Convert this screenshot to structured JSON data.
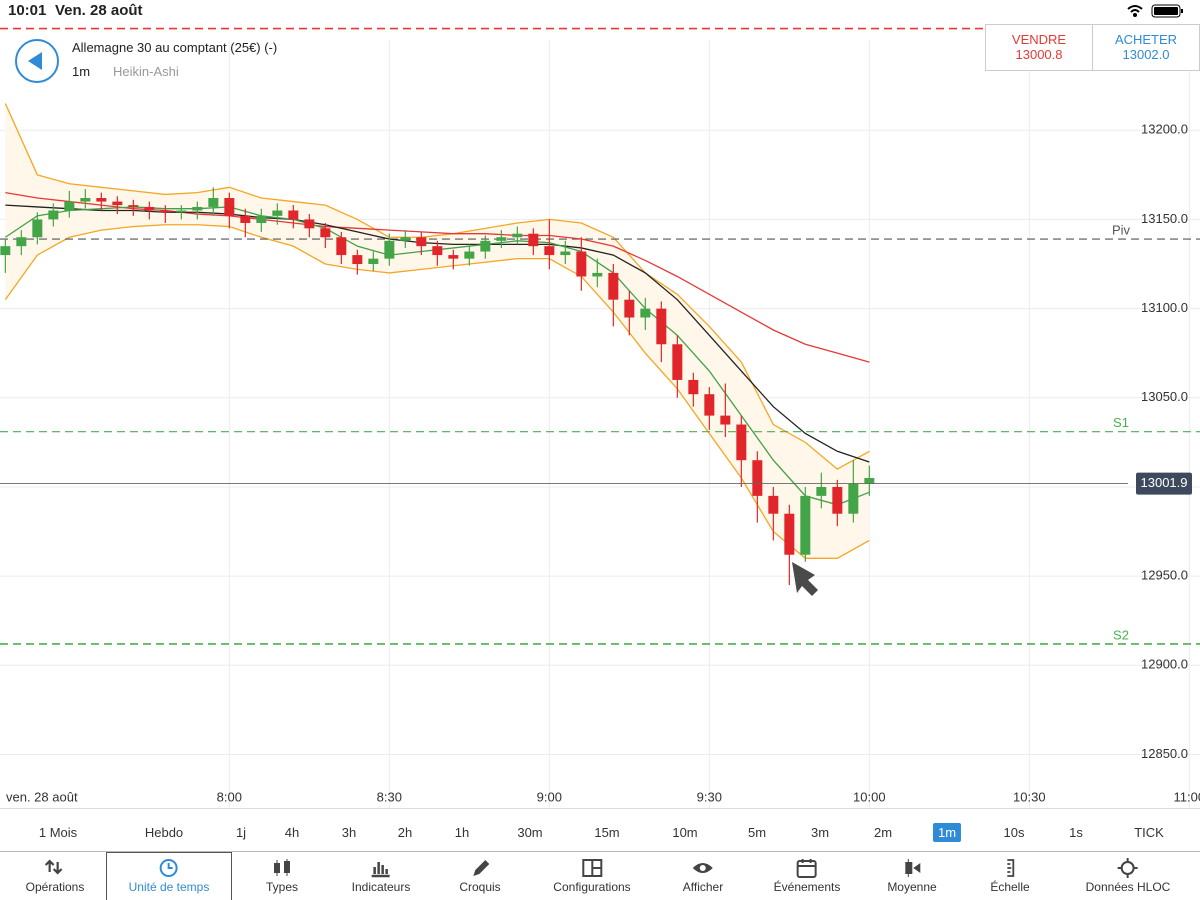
{
  "status_bar": {
    "time": "10:01",
    "date": "Ven. 28 août"
  },
  "header": {
    "instrument": "Allemagne 30 au comptant (25€) (-)",
    "interval": "1m",
    "chart_style": "Heikin-Ashi",
    "sell": {
      "label": "VENDRE",
      "price": "13000.8"
    },
    "buy": {
      "label": "ACHETER",
      "price": "13002.0"
    }
  },
  "chart_data": {
    "type": "candlestick",
    "date_label": "ven. 28 août",
    "xlim": [
      437,
      662
    ],
    "ylim": [
      12820,
      13259
    ],
    "xticks": [
      {
        "value": 480,
        "label": "8:00"
      },
      {
        "value": 510,
        "label": "8:30"
      },
      {
        "value": 540,
        "label": "9:00"
      },
      {
        "value": 570,
        "label": "9:30"
      },
      {
        "value": 600,
        "label": "10:00"
      },
      {
        "value": 630,
        "label": "10:30"
      },
      {
        "value": 660,
        "label": "11:00"
      }
    ],
    "yticks": [
      {
        "value": 12850,
        "label": "12850.0"
      },
      {
        "value": 12900,
        "label": "12900.0"
      },
      {
        "value": 12950,
        "label": "12950.0"
      },
      {
        "value": 13000,
        "label": "13000.0"
      },
      {
        "value": 13050,
        "label": "13050.0"
      },
      {
        "value": 13100,
        "label": "13100.0"
      },
      {
        "value": 13150,
        "label": "13150.0"
      },
      {
        "value": 13200,
        "label": "13200.0"
      }
    ],
    "grid": true,
    "up_color": "#43a547",
    "down_color": "#e0262b",
    "x": [
      438,
      441,
      444,
      447,
      450,
      453,
      456,
      459,
      462,
      465,
      468,
      471,
      474,
      477,
      480,
      483,
      486,
      489,
      492,
      495,
      498,
      501,
      504,
      507,
      510,
      513,
      516,
      519,
      522,
      525,
      528,
      531,
      534,
      537,
      540,
      543,
      546,
      549,
      552,
      555,
      558,
      561,
      564,
      567,
      570,
      573,
      576,
      579,
      582,
      585,
      588,
      591,
      594,
      597,
      600
    ],
    "open": [
      13130,
      13135,
      13140,
      13150,
      13155,
      13160,
      13162,
      13160,
      13158,
      13157,
      13155,
      13154,
      13155,
      13157,
      13162,
      13152,
      13148,
      13152,
      13155,
      13150,
      13145,
      13140,
      13130,
      13125,
      13128,
      13138,
      13140,
      13135,
      13130,
      13128,
      13132,
      13138,
      13140,
      13142,
      13135,
      13130,
      13132,
      13118,
      13120,
      13105,
      13095,
      13100,
      13080,
      13060,
      13052,
      13040,
      13035,
      13015,
      12995,
      12985,
      12962,
      12995,
      13000,
      12985,
      13002
    ],
    "high": [
      13139,
      13144,
      13154,
      13159,
      13166,
      13167,
      13165,
      13163,
      13161,
      13160,
      13158,
      13158,
      13160,
      13168,
      13165,
      13156,
      13156,
      13159,
      13158,
      13153,
      13148,
      13143,
      13133,
      13132,
      13142,
      13144,
      13143,
      13138,
      13133,
      13136,
      13141,
      13144,
      13146,
      13145,
      13150,
      13138,
      13140,
      13128,
      13125,
      13110,
      13106,
      13104,
      13085,
      13064,
      13056,
      13058,
      13040,
      13020,
      13000,
      12990,
      13000,
      13008,
      13004,
      13015,
      13012
    ],
    "low": [
      13120,
      13130,
      13136,
      13146,
      13151,
      13156,
      13155,
      13153,
      13152,
      13150,
      13148,
      13150,
      13150,
      13152,
      13145,
      13140,
      13143,
      13147,
      13145,
      13140,
      13134,
      13125,
      13119,
      13121,
      13124,
      13134,
      13130,
      13124,
      13122,
      13124,
      13128,
      13134,
      13136,
      13130,
      13122,
      13125,
      13110,
      13112,
      13090,
      13085,
      13088,
      13070,
      13050,
      13045,
      13032,
      13028,
      13000,
      12980,
      12970,
      12945,
      12958,
      12988,
      12978,
      12980,
      12995
    ],
    "close": [
      13135,
      13140,
      13150,
      13155,
      13160,
      13162,
      13160,
      13158,
      13157,
      13155,
      13154,
      13155,
      13157,
      13162,
      13152,
      13148,
      13152,
      13155,
      13150,
      13145,
      13140,
      13130,
      13125,
      13128,
      13138,
      13140,
      13135,
      13130,
      13128,
      13132,
      13138,
      13140,
      13142,
      13135,
      13130,
      13132,
      13118,
      13120,
      13105,
      13095,
      13100,
      13080,
      13060,
      13052,
      13040,
      13035,
      13015,
      12995,
      12985,
      12962,
      12995,
      13000,
      12985,
      13002,
      13005
    ],
    "line_x": [
      438,
      444,
      450,
      456,
      462,
      468,
      474,
      480,
      486,
      492,
      498,
      504,
      510,
      516,
      522,
      528,
      534,
      540,
      546,
      552,
      558,
      564,
      570,
      576,
      582,
      588,
      594,
      600
    ],
    "lines": [
      {
        "color": "#e53935",
        "values": [
          13165,
          13162,
          13160,
          13158,
          13156,
          13155,
          13153,
          13152,
          13150,
          13148,
          13146,
          13145,
          13144,
          13143,
          13142,
          13142,
          13141,
          13141,
          13139,
          13135,
          13127,
          13118,
          13108,
          13098,
          13088,
          13080,
          13075,
          13070
        ]
      },
      {
        "color": "#222222",
        "values": [
          13158,
          13157,
          13156,
          13155,
          13155,
          13154,
          13154,
          13153,
          13151,
          13150,
          13147,
          13143,
          13139,
          13137,
          13136,
          13136,
          13136,
          13136,
          13134,
          13130,
          13120,
          13105,
          13085,
          13065,
          13045,
          13030,
          13020,
          13014
        ]
      },
      {
        "color": "#43a047",
        "values": [
          13140,
          13152,
          13155,
          13156,
          13157,
          13156,
          13156,
          13157,
          13152,
          13150,
          13145,
          13135,
          13130,
          13132,
          13134,
          13136,
          13138,
          13137,
          13132,
          13120,
          13100,
          13085,
          13065,
          13040,
          13015,
          12995,
          12990,
          12997
        ]
      }
    ],
    "band": {
      "color": "#f5a623",
      "fill": "#fff7ea",
      "upper": [
        13215,
        13175,
        13170,
        13168,
        13166,
        13164,
        13165,
        13168,
        13162,
        13160,
        13158,
        13150,
        13140,
        13140,
        13142,
        13145,
        13148,
        13150,
        13148,
        13140,
        13120,
        13108,
        13090,
        13070,
        13035,
        13025,
        13010,
        13020
      ],
      "lower": [
        13105,
        13130,
        13140,
        13144,
        13146,
        13147,
        13147,
        13146,
        13140,
        13135,
        13125,
        13122,
        13120,
        13122,
        13124,
        13126,
        13128,
        13128,
        13118,
        13098,
        13075,
        13055,
        13030,
        13005,
        12975,
        12960,
        12960,
        12970
      ]
    },
    "levels": [
      {
        "value": 13257,
        "color": "#e53935"
      },
      {
        "value": 13139,
        "label": "Piv",
        "color": "#555555"
      },
      {
        "value": 13031,
        "label": "S1",
        "color": "#4caf50"
      },
      {
        "value": 12912,
        "label": "S2",
        "color": "#4caf50"
      }
    ],
    "last_price": 13001.9
  },
  "timeframes": [
    {
      "label": "1 Mois"
    },
    {
      "label": "Hebdo"
    },
    {
      "label": "1j"
    },
    {
      "label": "4h"
    },
    {
      "label": "3h"
    },
    {
      "label": "2h"
    },
    {
      "label": "1h"
    },
    {
      "label": "30m"
    },
    {
      "label": "15m"
    },
    {
      "label": "10m"
    },
    {
      "label": "5m"
    },
    {
      "label": "3m"
    },
    {
      "label": "2m"
    },
    {
      "label": "1m",
      "active": true
    },
    {
      "label": "10s"
    },
    {
      "label": "1s"
    },
    {
      "label": "TICK"
    }
  ],
  "toolbar": [
    "Opérations",
    "Unité de temps",
    "Types",
    "Indicateurs",
    "Croquis",
    "Configurations",
    "Afficher",
    "Événements",
    "Moyenne",
    "Échelle",
    "Données HLOC"
  ]
}
